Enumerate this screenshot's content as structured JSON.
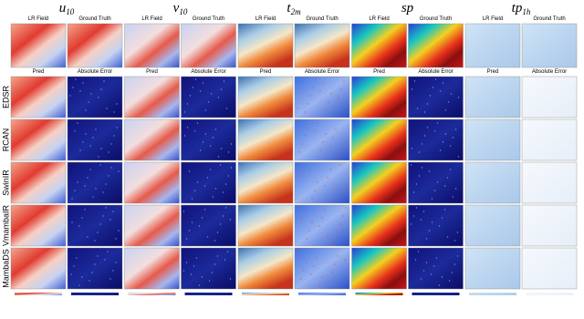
{
  "figure": {
    "columns": [
      {
        "variable": "u",
        "subscript": "10"
      },
      {
        "variable": "v",
        "subscript": "10"
      },
      {
        "variable": "t",
        "subscript": "2m"
      },
      {
        "variable": "sp"
      },
      {
        "variable": "tp",
        "subscript": "1h"
      }
    ],
    "top_labels": [
      "LR Field",
      "Ground Truth"
    ],
    "bottom_labels": [
      "Pred",
      "Absolute Error"
    ],
    "rows": [
      "EDSR",
      "RCAN",
      "SwinIR",
      "VmambaIR",
      "MambaDS"
    ]
  }
}
